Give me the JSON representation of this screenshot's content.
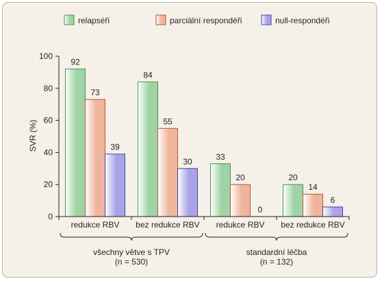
{
  "chart_data": {
    "type": "bar",
    "ylabel": "SVR (%)",
    "ylim": [
      0,
      100
    ],
    "yticks": [
      0,
      20,
      40,
      60,
      80,
      100
    ],
    "grid": false,
    "legend_position": "top",
    "categories": [
      "redukce RBV",
      "bez redukce RBV",
      "redukce RBV",
      "bez redukce RBV"
    ],
    "groups": [
      {
        "label_line1": "všechny větve s TPV",
        "label_line2": "(n = 530)",
        "span": [
          0,
          1
        ]
      },
      {
        "label_line1": "standardní léčba",
        "label_line2": "(n = 132)",
        "span": [
          2,
          3
        ]
      }
    ],
    "series": [
      {
        "name": "relapséři",
        "values": [
          92,
          84,
          33,
          20
        ],
        "color": "#9fd3a3",
        "color_dark": "#4f8f58"
      },
      {
        "name": "parciální respondéři",
        "values": [
          73,
          55,
          20,
          14
        ],
        "color": "#efb59c",
        "color_dark": "#b5583a"
      },
      {
        "name": "null-respondéři",
        "values": [
          39,
          30,
          0,
          6
        ],
        "color": "#a9a3e6",
        "color_dark": "#4a43a6"
      }
    ]
  }
}
